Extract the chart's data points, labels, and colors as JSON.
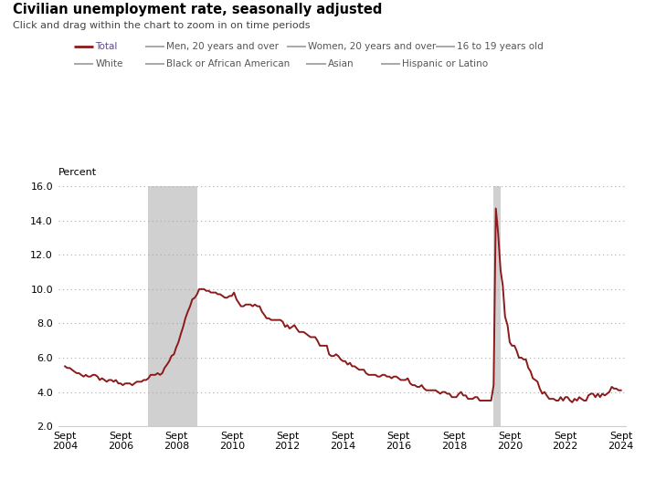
{
  "title": "Civilian unemployment rate, seasonally adjusted",
  "subtitle": "Click and drag within the chart to zoom in on time periods",
  "ylabel": "Percent",
  "ylim": [
    2.0,
    16.0
  ],
  "yticks": [
    2.0,
    4.0,
    6.0,
    8.0,
    10.0,
    12.0,
    14.0,
    16.0
  ],
  "line_color": "#8B1A1A",
  "recession1_start": 2007.75,
  "recession1_end": 2009.5,
  "recession2_start": 2020.17,
  "recession2_end": 2020.42,
  "xtick_years": [
    2004,
    2006,
    2008,
    2010,
    2012,
    2014,
    2016,
    2018,
    2020,
    2022,
    2024
  ],
  "legend_entries": [
    {
      "label": "Total",
      "color": "#8B1A1A",
      "lw": 2.0,
      "text_color": "#5c4a8a"
    },
    {
      "label": "Men, 20 years and over",
      "color": "#999999",
      "lw": 1.2,
      "text_color": "#555555"
    },
    {
      "label": "Women, 20 years and over",
      "color": "#999999",
      "lw": 1.2,
      "text_color": "#555555"
    },
    {
      "label": "16 to 19 years old",
      "color": "#999999",
      "lw": 1.2,
      "text_color": "#555555"
    },
    {
      "label": "White",
      "color": "#999999",
      "lw": 1.2,
      "text_color": "#555555"
    },
    {
      "label": "Black or African American",
      "color": "#999999",
      "lw": 1.2,
      "text_color": "#555555"
    },
    {
      "label": "Asian",
      "color": "#999999",
      "lw": 1.2,
      "text_color": "#555555"
    },
    {
      "label": "Hispanic or Latino",
      "color": "#999999",
      "lw": 1.2,
      "text_color": "#555555"
    }
  ],
  "data": [
    [
      2004.75,
      5.5
    ],
    [
      2004.83,
      5.4
    ],
    [
      2004.92,
      5.4
    ],
    [
      2005.0,
      5.3
    ],
    [
      2005.08,
      5.2
    ],
    [
      2005.17,
      5.1
    ],
    [
      2005.25,
      5.1
    ],
    [
      2005.33,
      5.0
    ],
    [
      2005.42,
      4.9
    ],
    [
      2005.5,
      5.0
    ],
    [
      2005.58,
      4.9
    ],
    [
      2005.67,
      4.9
    ],
    [
      2005.75,
      5.0
    ],
    [
      2005.83,
      5.0
    ],
    [
      2005.92,
      4.9
    ],
    [
      2006.0,
      4.7
    ],
    [
      2006.08,
      4.8
    ],
    [
      2006.17,
      4.7
    ],
    [
      2006.25,
      4.6
    ],
    [
      2006.33,
      4.7
    ],
    [
      2006.42,
      4.7
    ],
    [
      2006.5,
      4.6
    ],
    [
      2006.58,
      4.7
    ],
    [
      2006.67,
      4.5
    ],
    [
      2006.75,
      4.5
    ],
    [
      2006.83,
      4.4
    ],
    [
      2006.92,
      4.5
    ],
    [
      2007.0,
      4.5
    ],
    [
      2007.08,
      4.5
    ],
    [
      2007.17,
      4.4
    ],
    [
      2007.25,
      4.5
    ],
    [
      2007.33,
      4.6
    ],
    [
      2007.42,
      4.6
    ],
    [
      2007.5,
      4.6
    ],
    [
      2007.58,
      4.7
    ],
    [
      2007.67,
      4.7
    ],
    [
      2007.75,
      4.8
    ],
    [
      2007.83,
      5.0
    ],
    [
      2007.92,
      5.0
    ],
    [
      2008.0,
      5.0
    ],
    [
      2008.08,
      5.1
    ],
    [
      2008.17,
      5.0
    ],
    [
      2008.25,
      5.1
    ],
    [
      2008.33,
      5.4
    ],
    [
      2008.42,
      5.6
    ],
    [
      2008.5,
      5.8
    ],
    [
      2008.58,
      6.1
    ],
    [
      2008.67,
      6.2
    ],
    [
      2008.75,
      6.6
    ],
    [
      2008.83,
      6.9
    ],
    [
      2008.92,
      7.4
    ],
    [
      2009.0,
      7.8
    ],
    [
      2009.08,
      8.3
    ],
    [
      2009.17,
      8.7
    ],
    [
      2009.25,
      9.0
    ],
    [
      2009.33,
      9.4
    ],
    [
      2009.42,
      9.5
    ],
    [
      2009.5,
      9.7
    ],
    [
      2009.58,
      10.0
    ],
    [
      2009.67,
      10.0
    ],
    [
      2009.75,
      10.0
    ],
    [
      2009.83,
      9.9
    ],
    [
      2009.92,
      9.9
    ],
    [
      2010.0,
      9.8
    ],
    [
      2010.08,
      9.8
    ],
    [
      2010.17,
      9.8
    ],
    [
      2010.25,
      9.7
    ],
    [
      2010.33,
      9.7
    ],
    [
      2010.42,
      9.6
    ],
    [
      2010.5,
      9.5
    ],
    [
      2010.58,
      9.5
    ],
    [
      2010.67,
      9.6
    ],
    [
      2010.75,
      9.6
    ],
    [
      2010.83,
      9.8
    ],
    [
      2010.92,
      9.4
    ],
    [
      2011.0,
      9.2
    ],
    [
      2011.08,
      9.0
    ],
    [
      2011.17,
      9.0
    ],
    [
      2011.25,
      9.1
    ],
    [
      2011.33,
      9.1
    ],
    [
      2011.42,
      9.1
    ],
    [
      2011.5,
      9.0
    ],
    [
      2011.58,
      9.1
    ],
    [
      2011.67,
      9.0
    ],
    [
      2011.75,
      9.0
    ],
    [
      2011.83,
      8.7
    ],
    [
      2011.92,
      8.5
    ],
    [
      2012.0,
      8.3
    ],
    [
      2012.08,
      8.3
    ],
    [
      2012.17,
      8.2
    ],
    [
      2012.25,
      8.2
    ],
    [
      2012.33,
      8.2
    ],
    [
      2012.42,
      8.2
    ],
    [
      2012.5,
      8.2
    ],
    [
      2012.58,
      8.1
    ],
    [
      2012.67,
      7.8
    ],
    [
      2012.75,
      7.9
    ],
    [
      2012.83,
      7.7
    ],
    [
      2012.92,
      7.8
    ],
    [
      2013.0,
      7.9
    ],
    [
      2013.08,
      7.7
    ],
    [
      2013.17,
      7.5
    ],
    [
      2013.25,
      7.5
    ],
    [
      2013.33,
      7.5
    ],
    [
      2013.42,
      7.4
    ],
    [
      2013.5,
      7.3
    ],
    [
      2013.58,
      7.2
    ],
    [
      2013.67,
      7.2
    ],
    [
      2013.75,
      7.2
    ],
    [
      2013.83,
      7.0
    ],
    [
      2013.92,
      6.7
    ],
    [
      2014.0,
      6.7
    ],
    [
      2014.08,
      6.7
    ],
    [
      2014.17,
      6.7
    ],
    [
      2014.25,
      6.2
    ],
    [
      2014.33,
      6.1
    ],
    [
      2014.42,
      6.1
    ],
    [
      2014.5,
      6.2
    ],
    [
      2014.58,
      6.1
    ],
    [
      2014.67,
      5.9
    ],
    [
      2014.75,
      5.8
    ],
    [
      2014.83,
      5.8
    ],
    [
      2014.92,
      5.6
    ],
    [
      2015.0,
      5.7
    ],
    [
      2015.08,
      5.5
    ],
    [
      2015.17,
      5.5
    ],
    [
      2015.25,
      5.4
    ],
    [
      2015.33,
      5.3
    ],
    [
      2015.42,
      5.3
    ],
    [
      2015.5,
      5.3
    ],
    [
      2015.58,
      5.1
    ],
    [
      2015.67,
      5.0
    ],
    [
      2015.75,
      5.0
    ],
    [
      2015.83,
      5.0
    ],
    [
      2015.92,
      5.0
    ],
    [
      2016.0,
      4.9
    ],
    [
      2016.08,
      4.9
    ],
    [
      2016.17,
      5.0
    ],
    [
      2016.25,
      5.0
    ],
    [
      2016.33,
      4.9
    ],
    [
      2016.42,
      4.9
    ],
    [
      2016.5,
      4.8
    ],
    [
      2016.58,
      4.9
    ],
    [
      2016.67,
      4.9
    ],
    [
      2016.75,
      4.8
    ],
    [
      2016.83,
      4.7
    ],
    [
      2016.92,
      4.7
    ],
    [
      2017.0,
      4.7
    ],
    [
      2017.08,
      4.8
    ],
    [
      2017.17,
      4.5
    ],
    [
      2017.25,
      4.4
    ],
    [
      2017.33,
      4.4
    ],
    [
      2017.42,
      4.3
    ],
    [
      2017.5,
      4.3
    ],
    [
      2017.58,
      4.4
    ],
    [
      2017.67,
      4.2
    ],
    [
      2017.75,
      4.1
    ],
    [
      2017.83,
      4.1
    ],
    [
      2017.92,
      4.1
    ],
    [
      2018.0,
      4.1
    ],
    [
      2018.08,
      4.1
    ],
    [
      2018.17,
      4.0
    ],
    [
      2018.25,
      3.9
    ],
    [
      2018.33,
      4.0
    ],
    [
      2018.42,
      4.0
    ],
    [
      2018.5,
      3.9
    ],
    [
      2018.58,
      3.9
    ],
    [
      2018.67,
      3.7
    ],
    [
      2018.75,
      3.7
    ],
    [
      2018.83,
      3.7
    ],
    [
      2018.92,
      3.9
    ],
    [
      2019.0,
      4.0
    ],
    [
      2019.08,
      3.8
    ],
    [
      2019.17,
      3.8
    ],
    [
      2019.25,
      3.6
    ],
    [
      2019.33,
      3.6
    ],
    [
      2019.42,
      3.6
    ],
    [
      2019.5,
      3.7
    ],
    [
      2019.58,
      3.7
    ],
    [
      2019.67,
      3.5
    ],
    [
      2019.75,
      3.5
    ],
    [
      2019.83,
      3.5
    ],
    [
      2019.92,
      3.5
    ],
    [
      2020.0,
      3.5
    ],
    [
      2020.08,
      3.5
    ],
    [
      2020.17,
      4.4
    ],
    [
      2020.25,
      14.7
    ],
    [
      2020.33,
      13.3
    ],
    [
      2020.42,
      11.1
    ],
    [
      2020.5,
      10.2
    ],
    [
      2020.58,
      8.4
    ],
    [
      2020.67,
      7.9
    ],
    [
      2020.75,
      6.9
    ],
    [
      2020.83,
      6.7
    ],
    [
      2020.92,
      6.7
    ],
    [
      2021.0,
      6.4
    ],
    [
      2021.08,
      6.0
    ],
    [
      2021.17,
      6.0
    ],
    [
      2021.25,
      5.9
    ],
    [
      2021.33,
      5.9
    ],
    [
      2021.42,
      5.4
    ],
    [
      2021.5,
      5.2
    ],
    [
      2021.58,
      4.8
    ],
    [
      2021.67,
      4.7
    ],
    [
      2021.75,
      4.6
    ],
    [
      2021.83,
      4.2
    ],
    [
      2021.92,
      3.9
    ],
    [
      2022.0,
      4.0
    ],
    [
      2022.08,
      3.8
    ],
    [
      2022.17,
      3.6
    ],
    [
      2022.25,
      3.6
    ],
    [
      2022.33,
      3.6
    ],
    [
      2022.42,
      3.5
    ],
    [
      2022.5,
      3.5
    ],
    [
      2022.58,
      3.7
    ],
    [
      2022.67,
      3.5
    ],
    [
      2022.75,
      3.7
    ],
    [
      2022.83,
      3.7
    ],
    [
      2022.92,
      3.5
    ],
    [
      2023.0,
      3.4
    ],
    [
      2023.08,
      3.6
    ],
    [
      2023.17,
      3.5
    ],
    [
      2023.25,
      3.7
    ],
    [
      2023.33,
      3.6
    ],
    [
      2023.42,
      3.5
    ],
    [
      2023.5,
      3.5
    ],
    [
      2023.58,
      3.8
    ],
    [
      2023.67,
      3.9
    ],
    [
      2023.75,
      3.9
    ],
    [
      2023.83,
      3.7
    ],
    [
      2023.92,
      3.9
    ],
    [
      2024.0,
      3.7
    ],
    [
      2024.08,
      3.9
    ],
    [
      2024.17,
      3.8
    ],
    [
      2024.25,
      3.9
    ],
    [
      2024.33,
      4.0
    ],
    [
      2024.42,
      4.3
    ],
    [
      2024.5,
      4.2
    ],
    [
      2024.58,
      4.2
    ],
    [
      2024.67,
      4.1
    ],
    [
      2024.75,
      4.1
    ]
  ]
}
